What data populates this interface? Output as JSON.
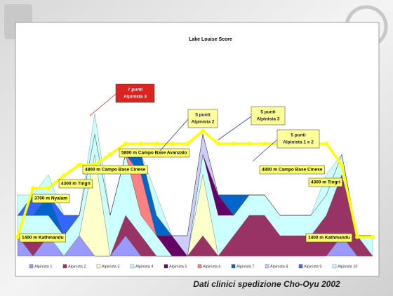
{
  "slide": {
    "footer": "Dati clinici spedizione Cho-Oyu 2002"
  },
  "chart_data": {
    "type": "area",
    "stacked": true,
    "title": "Lake Louise Score",
    "categories": [
      null,
      null,
      null,
      null,
      null,
      null,
      null,
      null,
      null,
      null,
      null,
      null,
      null,
      null,
      null,
      null,
      null,
      null,
      null,
      null,
      null,
      null,
      null,
      null
    ],
    "ylim": [
      0,
      10
    ],
    "series": [
      {
        "name": "Alpinista 1",
        "color": "#9999ff",
        "values": [
          1,
          0,
          1,
          0,
          1,
          0,
          0,
          1,
          0,
          0,
          0,
          0,
          0,
          0,
          0,
          0,
          0,
          0,
          0,
          0,
          0,
          1,
          0,
          0
        ]
      },
      {
        "name": "Alpinista 2",
        "color": "#993366",
        "values": [
          0,
          1,
          0,
          0,
          0,
          0,
          0,
          1,
          1,
          0,
          0,
          0,
          1,
          0,
          1,
          2,
          2,
          1,
          1,
          1,
          2,
          3,
          1,
          0
        ]
      },
      {
        "name": "Alpinista 3",
        "color": "#ffffcc",
        "values": [
          0,
          0,
          0,
          0,
          0,
          5,
          0,
          0,
          0,
          0,
          0,
          0,
          3,
          0,
          0,
          0,
          0,
          0,
          0,
          0,
          0,
          0,
          0,
          0
        ]
      },
      {
        "name": "Alpinista 4",
        "color": "#ccffff",
        "values": [
          1,
          1,
          1,
          1,
          1,
          1,
          2,
          3,
          1,
          1,
          0,
          0,
          1,
          2,
          1,
          1,
          1,
          1,
          1,
          1,
          1,
          1,
          0,
          1
        ]
      },
      {
        "name": "Alpinista 5",
        "color": "#660066",
        "values": [
          0,
          0,
          0,
          0,
          0,
          0,
          0,
          0,
          0,
          0,
          1,
          0,
          0,
          1,
          0,
          0,
          0,
          0,
          0,
          0,
          0,
          0,
          0,
          0
        ]
      },
      {
        "name": "Alpinista 6",
        "color": "#ff8080",
        "values": [
          0,
          0,
          0,
          0,
          0,
          0,
          0,
          0,
          2,
          0,
          0,
          0,
          0,
          0,
          0,
          0,
          0,
          0,
          0,
          0,
          0,
          0,
          0,
          0
        ]
      },
      {
        "name": "Alpinista 7",
        "color": "#0066cc",
        "values": [
          0,
          0,
          1,
          0,
          0,
          0,
          0,
          0,
          1,
          1,
          0,
          0,
          0,
          0,
          1,
          0,
          0,
          0,
          0,
          0,
          0,
          0,
          0,
          0
        ]
      },
      {
        "name": "Alpinista 8",
        "color": "#ccccff",
        "values": [
          0,
          0,
          0,
          0,
          0,
          0,
          0,
          0,
          0,
          0,
          0,
          1,
          1,
          0,
          0,
          0,
          0,
          0,
          0,
          0,
          0,
          0,
          0,
          0
        ]
      },
      {
        "name": "Alpinista 9",
        "color": "#3366ff",
        "values": [
          0,
          1,
          0,
          1,
          0,
          0,
          0,
          0,
          0,
          0,
          0,
          0,
          0,
          0,
          0,
          0,
          0,
          0,
          0,
          0,
          0,
          0,
          0,
          0
        ]
      },
      {
        "name": "Alpinista 10",
        "color": "#ccffff",
        "values": [
          1,
          0,
          1,
          0,
          0,
          1,
          0,
          0,
          0,
          1,
          0,
          0,
          0,
          0,
          0,
          0,
          0,
          0,
          0,
          0,
          1,
          0,
          0,
          0
        ]
      }
    ],
    "altitude": {
      "color": "#ffff00",
      "axis": "y2",
      "values": [
        1400,
        3700,
        3700,
        4300,
        4800,
        4800,
        5300,
        5800,
        5800,
        5800,
        5800,
        5800,
        6400,
        5800,
        5800,
        5800,
        5800,
        5800,
        5800,
        5800,
        5800,
        4800,
        1400,
        1400
      ]
    },
    "y2lim": [
      500,
      10100
    ],
    "altitude_labels": [
      "1400 m Kathmandu",
      "3700 m Nyalam",
      "4300 m Tingri",
      "4800 m Campo Base Cinese",
      "5800 m Campo Base Avanzato",
      "4800 m Campo Base Cinese",
      "4300 m Tingri",
      "1400 m Kathmandu"
    ],
    "callouts": [
      [
        "7 punti",
        "Alpinista 3"
      ],
      [
        "5 punti",
        "Alpinista 2"
      ],
      [
        "5 punti",
        "Alpinista 3"
      ],
      [
        "5 punti",
        "Alpinista 1 e 2"
      ]
    ]
  }
}
